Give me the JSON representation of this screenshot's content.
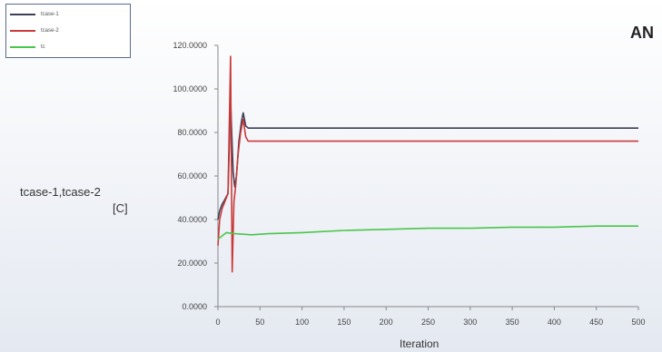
{
  "chart_data": {
    "type": "line",
    "title": "",
    "xlabel": "Iteration",
    "ylabel": [
      "tcase-1,tcase-2",
      "[C]"
    ],
    "xlim": [
      0,
      500
    ],
    "ylim": [
      0,
      120
    ],
    "x_ticks": [
      0,
      50,
      100,
      150,
      200,
      250,
      300,
      350,
      400,
      450,
      500
    ],
    "x_tick_labels": [
      "0",
      "50",
      "100",
      "150",
      "200",
      "250",
      "300",
      "350",
      "400",
      "450",
      "500"
    ],
    "y_ticks": [
      0,
      20,
      40,
      60,
      80,
      100,
      120
    ],
    "y_tick_labels": [
      "0.0000",
      "20.0000",
      "40.0000",
      "60.0000",
      "80.0000",
      "100.0000",
      "120.0000"
    ],
    "legend_position": "top-left",
    "series": [
      {
        "name": "tcase-1",
        "color": "#3a3f55",
        "x": [
          0,
          2,
          5,
          8,
          12,
          15,
          18,
          20,
          22,
          25,
          28,
          30,
          33,
          36,
          40,
          50,
          100,
          200,
          300,
          400,
          500
        ],
        "y": [
          40,
          44,
          47,
          49,
          52,
          95,
          62,
          55,
          60,
          76,
          85,
          89,
          83,
          82,
          82,
          82,
          82,
          82,
          82,
          82,
          82
        ]
      },
      {
        "name": "tcase-2",
        "color": "#c93a3a",
        "x": [
          0,
          2,
          5,
          8,
          12,
          15,
          17,
          19,
          21,
          24,
          27,
          30,
          33,
          36,
          40,
          50,
          100,
          200,
          300,
          400,
          500
        ],
        "y": [
          28,
          40,
          45,
          48,
          52,
          115,
          16,
          48,
          55,
          70,
          80,
          86,
          78,
          76,
          76,
          76,
          76,
          76,
          76,
          76,
          76
        ]
      },
      {
        "name": "tc",
        "color": "#49c64a",
        "x": [
          0,
          10,
          20,
          40,
          60,
          100,
          150,
          200,
          250,
          300,
          350,
          400,
          450,
          500
        ],
        "y": [
          31,
          34,
          33.5,
          33,
          33.5,
          34,
          35,
          35.5,
          36,
          36,
          36.5,
          36.5,
          37,
          37
        ]
      }
    ]
  },
  "legend": {
    "items": [
      "tcase-1",
      "tcase-2",
      "tc"
    ]
  },
  "logo": {
    "text": "AN"
  }
}
